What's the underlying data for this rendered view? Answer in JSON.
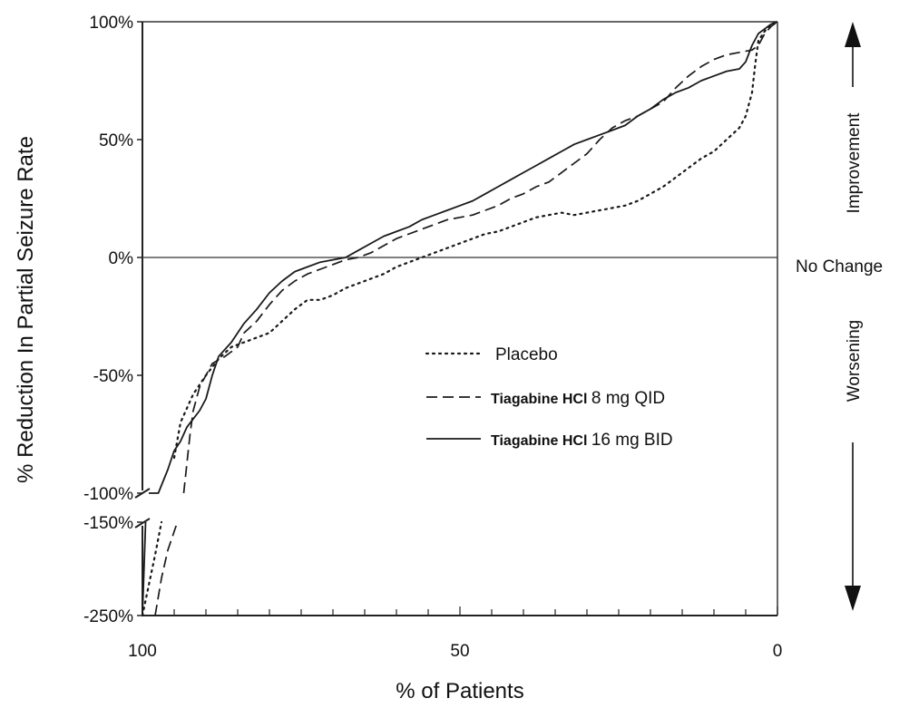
{
  "chart_data": {
    "type": "line",
    "xlabel": "% of Patients",
    "ylabel": "% Reduction In Partial Seizure Rate",
    "x_direction": "reversed",
    "xlim": [
      100,
      0
    ],
    "x_ticks": [
      "100",
      "50",
      "0"
    ],
    "y_ticks_upper": [
      "100%",
      "50%",
      "0%",
      "-50%",
      "-100%"
    ],
    "y_ticks_lower": [
      "-150%",
      "-250%"
    ],
    "y_axis_break": "between -100% and -150%",
    "reference_line": {
      "y": 0,
      "label": "No Change"
    },
    "side_labels": {
      "top": "Improvement",
      "bottom": "Worsening"
    },
    "legend_placement": "center-right",
    "series": [
      {
        "name": "Placebo",
        "name_bold": "",
        "name_rest": "Placebo",
        "style": "dotted",
        "points": [
          [
            100,
            -250
          ],
          [
            98,
            -185
          ],
          [
            97,
            -150
          ],
          [
            96,
            -108
          ],
          [
            95,
            -85
          ],
          [
            94,
            -70
          ],
          [
            92,
            -58
          ],
          [
            90,
            -50
          ],
          [
            88,
            -43
          ],
          [
            86,
            -38
          ],
          [
            84,
            -36
          ],
          [
            82,
            -34
          ],
          [
            80,
            -32
          ],
          [
            78,
            -27
          ],
          [
            76,
            -22
          ],
          [
            74,
            -18
          ],
          [
            72,
            -18
          ],
          [
            70,
            -16
          ],
          [
            68,
            -13
          ],
          [
            66,
            -11
          ],
          [
            64,
            -9
          ],
          [
            62,
            -7
          ],
          [
            60,
            -4
          ],
          [
            58,
            -2
          ],
          [
            56,
            0
          ],
          [
            54,
            2
          ],
          [
            52,
            4
          ],
          [
            50,
            6
          ],
          [
            48,
            8
          ],
          [
            46,
            10
          ],
          [
            44,
            11
          ],
          [
            42,
            13
          ],
          [
            40,
            15
          ],
          [
            38,
            17
          ],
          [
            36,
            18
          ],
          [
            34,
            19
          ],
          [
            32,
            18
          ],
          [
            30,
            19
          ],
          [
            28,
            20
          ],
          [
            26,
            21
          ],
          [
            24,
            22
          ],
          [
            22,
            24
          ],
          [
            20,
            27
          ],
          [
            18,
            30
          ],
          [
            16,
            34
          ],
          [
            14,
            38
          ],
          [
            12,
            42
          ],
          [
            10,
            45
          ],
          [
            8,
            50
          ],
          [
            6,
            55
          ],
          [
            5,
            60
          ],
          [
            4,
            70
          ],
          [
            3.5,
            82
          ],
          [
            3,
            92
          ],
          [
            2,
            96
          ],
          [
            1,
            99
          ],
          [
            0,
            100
          ]
        ]
      },
      {
        "name": "Tiagabine HCl 8 mg QID",
        "name_bold": "Tiagabine HCl",
        "name_rest": "8 mg QID",
        "style": "dashed",
        "points": [
          [
            98,
            -250
          ],
          [
            97,
            -210
          ],
          [
            96,
            -180
          ],
          [
            94.5,
            -150
          ],
          [
            93.5,
            -100
          ],
          [
            92.5,
            -75
          ],
          [
            92,
            -65
          ],
          [
            91,
            -55
          ],
          [
            90,
            -50
          ],
          [
            89,
            -45
          ],
          [
            87,
            -42
          ],
          [
            85,
            -38
          ],
          [
            84,
            -32
          ],
          [
            82,
            -27
          ],
          [
            80,
            -20
          ],
          [
            78,
            -14
          ],
          [
            76,
            -10
          ],
          [
            74,
            -7
          ],
          [
            72,
            -5
          ],
          [
            70,
            -3
          ],
          [
            68,
            -1
          ],
          [
            66,
            0
          ],
          [
            64,
            2
          ],
          [
            62,
            5
          ],
          [
            60,
            8
          ],
          [
            58,
            10
          ],
          [
            56,
            12
          ],
          [
            54,
            14
          ],
          [
            52,
            16
          ],
          [
            50,
            17
          ],
          [
            48,
            18
          ],
          [
            46,
            20
          ],
          [
            44,
            22
          ],
          [
            42,
            25
          ],
          [
            40,
            27
          ],
          [
            38,
            30
          ],
          [
            36,
            32
          ],
          [
            34,
            36
          ],
          [
            32,
            40
          ],
          [
            30,
            44
          ],
          [
            28,
            50
          ],
          [
            26,
            55
          ],
          [
            24,
            58
          ],
          [
            22,
            60
          ],
          [
            20,
            63
          ],
          [
            18,
            66
          ],
          [
            16,
            72
          ],
          [
            14,
            77
          ],
          [
            12,
            81
          ],
          [
            10,
            84
          ],
          [
            8,
            86
          ],
          [
            6,
            87
          ],
          [
            4,
            88
          ],
          [
            3,
            90
          ],
          [
            2,
            95
          ],
          [
            1,
            98
          ],
          [
            0,
            100
          ]
        ]
      },
      {
        "name": "Tiagabine HCl 16 mg BID",
        "name_bold": "Tiagabine HCl",
        "name_rest": "16 mg BID",
        "style": "solid",
        "points": [
          [
            100,
            -250
          ],
          [
            99.5,
            -150
          ],
          [
            99,
            -100
          ],
          [
            97.5,
            -100
          ],
          [
            96,
            -90
          ],
          [
            95,
            -82
          ],
          [
            94,
            -78
          ],
          [
            93,
            -72
          ],
          [
            91,
            -65
          ],
          [
            90,
            -60
          ],
          [
            89,
            -50
          ],
          [
            88,
            -42
          ],
          [
            86,
            -36
          ],
          [
            84,
            -28
          ],
          [
            82,
            -22
          ],
          [
            80,
            -15
          ],
          [
            78,
            -10
          ],
          [
            76,
            -6
          ],
          [
            74,
            -4
          ],
          [
            72,
            -2
          ],
          [
            70,
            -1
          ],
          [
            68,
            0
          ],
          [
            66,
            3
          ],
          [
            64,
            6
          ],
          [
            62,
            9
          ],
          [
            60,
            11
          ],
          [
            58,
            13
          ],
          [
            56,
            16
          ],
          [
            54,
            18
          ],
          [
            52,
            20
          ],
          [
            50,
            22
          ],
          [
            48,
            24
          ],
          [
            46,
            27
          ],
          [
            44,
            30
          ],
          [
            42,
            33
          ],
          [
            40,
            36
          ],
          [
            38,
            39
          ],
          [
            36,
            42
          ],
          [
            34,
            45
          ],
          [
            32,
            48
          ],
          [
            30,
            50
          ],
          [
            28,
            52
          ],
          [
            26,
            54
          ],
          [
            24,
            56
          ],
          [
            22,
            60
          ],
          [
            20,
            63
          ],
          [
            18,
            67
          ],
          [
            16,
            70
          ],
          [
            14,
            72
          ],
          [
            12,
            75
          ],
          [
            10,
            77
          ],
          [
            8,
            79
          ],
          [
            6,
            80
          ],
          [
            5,
            83
          ],
          [
            4,
            90
          ],
          [
            3,
            95
          ],
          [
            2,
            97
          ],
          [
            1,
            99
          ],
          [
            0,
            100
          ]
        ]
      }
    ]
  }
}
